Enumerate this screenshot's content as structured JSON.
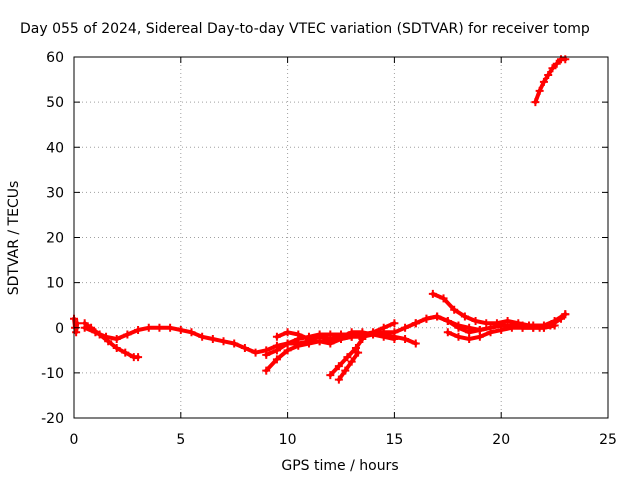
{
  "chart_data": {
    "type": "line",
    "title": "Day 055 of 2024, Sidereal Day-to-day VTEC variation (SDTVAR) for receiver tomp",
    "xlabel": "GPS time / hours",
    "ylabel": "SDTVAR / TECUs",
    "xlim": [
      0,
      25
    ],
    "ylim": [
      -20,
      60
    ],
    "xticks": [
      0,
      5,
      10,
      15,
      20,
      25
    ],
    "yticks": [
      -20,
      -10,
      0,
      10,
      20,
      30,
      40,
      50,
      60
    ],
    "grid": true,
    "color": "#ff0000",
    "series": [
      {
        "x": [
          0,
          0.05,
          0.1,
          0.15
        ],
        "y": [
          2,
          0,
          -1,
          1
        ]
      },
      {
        "x": [
          0.5,
          0.8,
          1.2,
          1.6,
          2.0,
          2.4,
          2.8,
          3.0
        ],
        "y": [
          1,
          0,
          -1.5,
          -3,
          -4.5,
          -5.5,
          -6.5,
          -6.5
        ]
      },
      {
        "x": [
          0.5,
          1.0,
          1.5,
          2.0,
          2.5,
          3.0,
          3.5,
          4.0,
          4.5,
          5.0,
          5.5,
          6.0,
          6.5,
          7.0,
          7.5,
          8.0,
          8.5,
          9.0,
          9.5,
          10.0,
          10.5,
          11.0,
          11.5,
          12.0,
          12.5,
          13.0,
          13.5,
          14.0,
          14.5,
          15.0,
          15.5,
          16.0,
          16.5,
          17.0,
          17.5,
          18.0,
          18.5,
          19.0,
          19.5,
          20.0,
          20.5,
          21.0,
          21.5,
          22.0,
          22.5,
          23.0
        ],
        "y": [
          0,
          -1,
          -2,
          -2.5,
          -1.5,
          -0.5,
          0,
          0,
          0,
          -0.5,
          -1,
          -2,
          -2.5,
          -3,
          -3.5,
          -4.5,
          -5.5,
          -5,
          -4,
          -3.5,
          -3.5,
          -3,
          -3,
          -3.5,
          -2.5,
          -2,
          -1.5,
          -1.5,
          -1,
          -1,
          0,
          1,
          2,
          2.5,
          1.5,
          0.5,
          0,
          -0.5,
          0,
          0.5,
          0.5,
          0.5,
          0.5,
          0.5,
          1.5,
          3
        ]
      },
      {
        "x": [
          9.0,
          9.5,
          10.0,
          10.5,
          11.0,
          11.5,
          12.0,
          12.5,
          13.0,
          13.5,
          14.0,
          14.5,
          15.0,
          15.5,
          16.0
        ],
        "y": [
          -9.5,
          -7,
          -5,
          -4,
          -3.5,
          -3,
          -3,
          -2.5,
          -2,
          -2,
          -1.5,
          -1.5,
          -2,
          -2.5,
          -3.5
        ]
      },
      {
        "x": [
          9.0,
          9.5,
          10.0,
          10.5,
          11.0,
          11.5,
          12.0,
          12.5,
          13.0,
          13.5,
          14.0,
          14.5,
          15.0
        ],
        "y": [
          -6,
          -5,
          -3.5,
          -2.5,
          -2,
          -1.5,
          -1.5,
          -1.5,
          -1.5,
          -1.5,
          -1,
          0,
          1
        ]
      },
      {
        "x": [
          9.5,
          10.0,
          10.5,
          11.0,
          11.5,
          12.0,
          12.5,
          13.0,
          13.5,
          14.0,
          14.5,
          15.0
        ],
        "y": [
          -2,
          -1,
          -1.5,
          -2.5,
          -2,
          -2.5,
          -2,
          -1,
          -1,
          -1.5,
          -2,
          -2.5
        ]
      },
      {
        "x": [
          12.0,
          12.4,
          12.8,
          13.2,
          13.5
        ],
        "y": [
          -10.5,
          -8.5,
          -6.5,
          -4.5,
          -2.5
        ]
      },
      {
        "x": [
          12.4,
          12.7,
          13.0,
          13.3
        ],
        "y": [
          -11.5,
          -9.5,
          -7.5,
          -5.5
        ]
      },
      {
        "x": [
          16.8,
          17.3,
          17.8,
          18.3,
          18.8,
          19.3,
          19.8,
          20.3,
          20.8,
          21.3,
          21.8,
          22.3,
          22.8,
          23.0
        ],
        "y": [
          7.5,
          6.5,
          4,
          2.5,
          1.5,
          1,
          1,
          1.5,
          1,
          0.5,
          0,
          0.5,
          2,
          3
        ]
      },
      {
        "x": [
          16.0,
          16.5,
          17.0,
          17.5,
          18.0,
          18.5,
          19.0,
          19.5,
          20.0,
          20.5,
          21.0,
          21.5,
          22.0,
          22.5
        ],
        "y": [
          1,
          2,
          2.5,
          1.5,
          0,
          -1,
          -0.5,
          0,
          0.5,
          0.5,
          0,
          0,
          0,
          0.5
        ]
      },
      {
        "x": [
          17.5,
          18.0,
          18.5,
          19.0,
          19.5,
          20.0,
          20.5,
          21.0,
          21.5,
          22.0,
          22.5
        ],
        "y": [
          -1,
          -2,
          -2.5,
          -2,
          -1,
          -0.5,
          0,
          0,
          0,
          0,
          0.5
        ]
      },
      {
        "x": [
          21.6,
          21.8,
          22.0,
          22.2,
          22.4,
          22.6,
          22.8,
          23.0
        ],
        "y": [
          50,
          52.5,
          54.5,
          56,
          57.5,
          58.5,
          59.5,
          59.5
        ]
      }
    ]
  }
}
